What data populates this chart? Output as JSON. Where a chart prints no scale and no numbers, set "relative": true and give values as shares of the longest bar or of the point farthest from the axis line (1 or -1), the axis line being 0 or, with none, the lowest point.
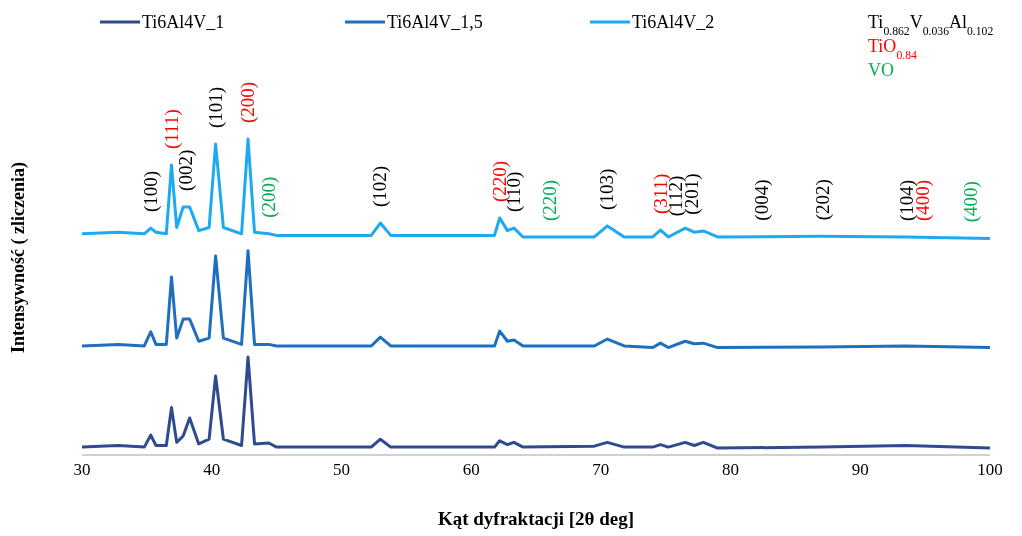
{
  "chart_data": {
    "type": "line",
    "relative": true,
    "xlabel": "Kąt dyfraktacji  [2θ deg]",
    "ylabel": "Intensywność ( zliczenia)",
    "xlim": [
      30,
      100
    ],
    "xticks": [
      30,
      40,
      50,
      60,
      70,
      80,
      90,
      100
    ],
    "legend": "top",
    "marker": "none",
    "line_style": "solid",
    "x": [
      30,
      32.8,
      34.8,
      35.3,
      35.7,
      36.5,
      36.9,
      37.3,
      37.8,
      38.3,
      39.0,
      39.8,
      40.3,
      40.9,
      42.3,
      42.8,
      43.3,
      44.4,
      45,
      52.3,
      53.0,
      53.8,
      61.8,
      62.2,
      62.8,
      63.3,
      64,
      69.5,
      70.5,
      71.8,
      74.0,
      74.6,
      75.2,
      76.5,
      77.2,
      77.9,
      79,
      87,
      93.5,
      100
    ],
    "series": [
      {
        "name": "Ti6Al4V_1",
        "color": "#2f4b8f",
        "values": [
          0.025,
          0.03,
          0.025,
          0.063,
          0.03,
          0.03,
          0.15,
          0.04,
          0.06,
          0.117,
          0.035,
          0.05,
          0.25,
          0.05,
          0.03,
          0.31,
          0.035,
          0.038,
          0.025,
          0.025,
          0.05,
          0.025,
          0.025,
          0.045,
          0.033,
          0.04,
          0.025,
          0.028,
          0.04,
          0.025,
          0.025,
          0.033,
          0.025,
          0.04,
          0.03,
          0.04,
          0.022,
          0.025,
          0.03,
          0.022
        ]
      },
      {
        "name": "Ti6Al4V_1,5",
        "color": "#1f6fbf",
        "values": [
          0.345,
          0.35,
          0.345,
          0.39,
          0.35,
          0.35,
          0.563,
          0.37,
          0.43,
          0.43,
          0.36,
          0.37,
          0.63,
          0.37,
          0.35,
          0.646,
          0.35,
          0.35,
          0.345,
          0.345,
          0.373,
          0.345,
          0.345,
          0.392,
          0.36,
          0.364,
          0.345,
          0.345,
          0.367,
          0.345,
          0.34,
          0.354,
          0.34,
          0.36,
          0.352,
          0.354,
          0.34,
          0.342,
          0.345,
          0.34
        ]
      },
      {
        "name": "Ti6Al4V_2",
        "color": "#1eaaf1",
        "values": [
          0.7,
          0.705,
          0.7,
          0.718,
          0.705,
          0.7,
          0.918,
          0.72,
          0.785,
          0.785,
          0.71,
          0.72,
          0.984,
          0.72,
          0.7,
          1.0,
          0.705,
          0.7,
          0.695,
          0.695,
          0.734,
          0.695,
          0.695,
          0.75,
          0.71,
          0.718,
          0.69,
          0.69,
          0.725,
          0.69,
          0.69,
          0.712,
          0.69,
          0.718,
          0.705,
          0.709,
          0.69,
          0.692,
          0.69,
          0.685
        ]
      }
    ],
    "annotations": [
      "Ti$_{0.862}$V$_{0.036}$Al$_{0.102}$",
      "TiO$_{0.84}$",
      "VO",
      {
        "text": "(100)",
        "x": 35.3,
        "y": 0.718
      },
      {
        "text": "(111)",
        "x": 36.9,
        "y": 0.918
      },
      {
        "text": "(002)",
        "x": 38.0,
        "y": 0.785
      },
      {
        "text": "(101)",
        "x": 40.3,
        "y": 0.984
      },
      {
        "text": "(200)",
        "x": 42.8,
        "y": 1.0
      },
      {
        "text": "(200)",
        "x": 44.4,
        "y": 0.7
      },
      {
        "text": "(102)",
        "x": 53.0,
        "y": 0.734
      },
      {
        "text": "(220)",
        "x": 62.2,
        "y": 0.75
      },
      {
        "text": "(110)",
        "x": 63.3,
        "y": 0.718
      },
      {
        "text": "(220)",
        "x": 66.1,
        "y": 0.69
      },
      {
        "text": "(103)",
        "x": 70.5,
        "y": 0.725
      },
      {
        "text": "(311)",
        "x": 74.6,
        "y": 0.712
      },
      {
        "text": "(112)",
        "x": 75.8,
        "y": 0.705
      },
      {
        "text": "(201)",
        "x": 77.0,
        "y": 0.71
      },
      {
        "text": "(004)",
        "x": 82.4,
        "y": 0.691
      },
      {
        "text": "(202)",
        "x": 87.1,
        "y": 0.692
      },
      {
        "text": "(104)",
        "x": 93.6,
        "y": 0.69
      },
      {
        "text": "(400)",
        "x": 94.8,
        "y": 0.69
      },
      {
        "text": "(400)",
        "x": 98.5,
        "y": 0.686
      }
    ]
  }
}
